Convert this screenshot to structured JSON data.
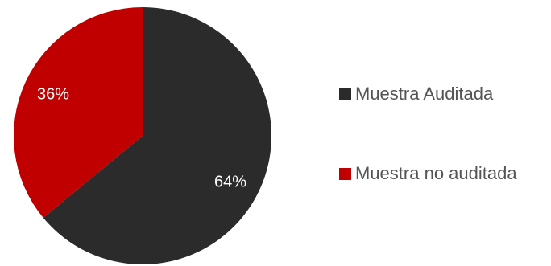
{
  "chart_data": {
    "type": "pie",
    "categories": [
      "Muestra Auditada",
      "Muestra no auditada"
    ],
    "values": [
      64,
      36
    ],
    "data_labels": [
      "64%",
      "36%"
    ],
    "colors": [
      "#2b2b2b",
      "#c00000"
    ],
    "title": "",
    "legend_position": "right"
  },
  "legend": {
    "items": [
      {
        "label": "Muestra Auditada",
        "color": "#2b2b2b"
      },
      {
        "label": "Muestra no auditada",
        "color": "#c00000"
      }
    ]
  }
}
